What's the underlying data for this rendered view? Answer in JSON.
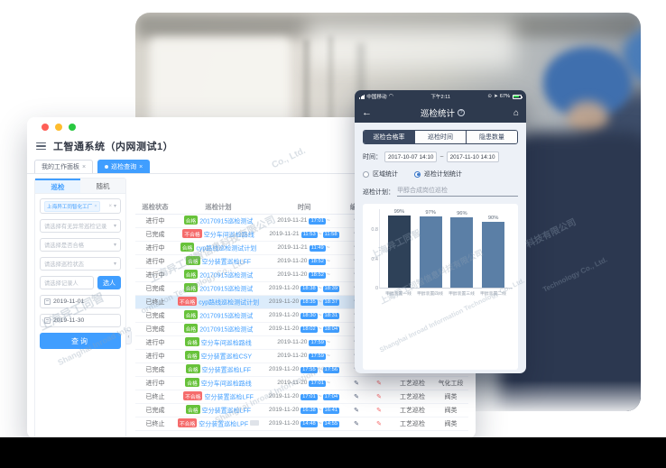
{
  "window": {
    "title": "工智通系统（内网测试1）",
    "tabs": [
      {
        "label": "我的工作面板",
        "active": false
      },
      {
        "label": "巡检查询",
        "active": true
      }
    ]
  },
  "sidebar": {
    "tabs": [
      {
        "label": "巡检"
      },
      {
        "label": "随机"
      }
    ],
    "org_tag": "上海异工同智化工厂",
    "org_tag_overflow": "+",
    "filters": [
      {
        "placeholder": "请选择有无异常巡检记录"
      },
      {
        "placeholder": "请选择是否合格"
      },
      {
        "placeholder": "请选择巡检状态"
      }
    ],
    "person_placeholder": "请选择记录人",
    "pick_person_label": "选人",
    "date_start": "2019-11-01",
    "date_end": "2019-11-30",
    "search_label": "查询"
  },
  "table": {
    "headers": [
      "巡检状态",
      "巡检计划",
      "时间",
      "编写",
      "",
      "",
      ""
    ],
    "rows": [
      {
        "status": "进行中",
        "result": "合格",
        "plan": "20170915巡检测试",
        "date": "2019-11-21",
        "t1": "17:01",
        "t2": "",
        "type": "",
        "area": "",
        "hl": false,
        "tag": false
      },
      {
        "status": "已完成",
        "result": "不合格",
        "plan": "空分车间巡检路线",
        "date": "2019-11-21",
        "t1": "11:53",
        "t2": "11:58",
        "type": "",
        "area": "",
        "hl": false,
        "tag": false
      },
      {
        "status": "进行中",
        "result": "合格",
        "plan": "cyp路线巡检测试计划",
        "date": "2019-11-21",
        "t1": "11:49",
        "t2": "",
        "type": "",
        "area": "",
        "hl": false,
        "tag": false
      },
      {
        "status": "进行中",
        "result": "合格",
        "plan": "空分装置巡检LFF",
        "date": "2019-11-20",
        "t1": "18:52",
        "t2": "",
        "type": "",
        "area": "",
        "hl": false,
        "tag": false
      },
      {
        "status": "进行中",
        "result": "合格",
        "plan": "20170915巡检测试",
        "date": "2019-11-20",
        "t1": "18:52",
        "t2": "",
        "type": "",
        "area": "",
        "hl": false,
        "tag": false
      },
      {
        "status": "已完成",
        "result": "合格",
        "plan": "20170915巡检测试",
        "date": "2019-11-20",
        "t1": "18:38",
        "t2": "18:39",
        "type": "",
        "area": "",
        "hl": false,
        "tag": false
      },
      {
        "status": "已终止",
        "result": "不合格",
        "plan": "cyp路线巡检测试计划",
        "date": "2019-11-20",
        "t1": "18:35",
        "t2": "18:37",
        "type": "",
        "area": "",
        "hl": true,
        "tag": false
      },
      {
        "status": "已完成",
        "result": "合格",
        "plan": "20170915巡检测试",
        "date": "2019-11-20",
        "t1": "18:30",
        "t2": "18:31",
        "type": "",
        "area": "",
        "hl": false,
        "tag": false
      },
      {
        "status": "已完成",
        "result": "合格",
        "plan": "20170915巡检测试",
        "date": "2019-11-20",
        "t1": "18:02",
        "t2": "18:04",
        "type": "",
        "area": "",
        "hl": false,
        "tag": false
      },
      {
        "status": "进行中",
        "result": "合格",
        "plan": "空分车间巡检路线",
        "date": "2019-11-20",
        "t1": "17:59",
        "t2": "",
        "type": "",
        "area": "",
        "hl": false,
        "tag": false
      },
      {
        "status": "进行中",
        "result": "合格",
        "plan": "空分装置巡检CSY",
        "date": "2019-11-20",
        "t1": "17:59",
        "t2": "",
        "type": "",
        "area": "",
        "hl": false,
        "tag": false
      },
      {
        "status": "已完成",
        "result": "合格",
        "plan": "空分装置巡检LFF",
        "date": "2019-11-20",
        "t1": "17:55",
        "t2": "17:56",
        "type": "工艺巡检",
        "area": "阀类",
        "hl": false,
        "tag": false
      },
      {
        "status": "进行中",
        "result": "合格",
        "plan": "空分车间巡检路线",
        "date": "2019-11-20",
        "t1": "17:01",
        "t2": "",
        "type": "工艺巡检",
        "area": "气化工段",
        "hl": false,
        "tag": false
      },
      {
        "status": "已终止",
        "result": "不合格",
        "plan": "空分装置巡检LFF",
        "date": "2019-11-20",
        "t1": "17:01",
        "t2": "17:04",
        "type": "工艺巡检",
        "area": "阀类",
        "hl": false,
        "tag": false
      },
      {
        "status": "已完成",
        "result": "合格",
        "plan": "空分装置巡检LFF",
        "date": "2019-11-20",
        "t1": "16:38",
        "t2": "16:41",
        "type": "工艺巡检",
        "area": "阀类",
        "hl": false,
        "tag": false
      },
      {
        "status": "已终止",
        "result": "不合格",
        "plan": "空分装置巡检LPF",
        "date": "2019-11-20",
        "t1": "14:48",
        "t2": "14:55",
        "type": "工艺巡检",
        "area": "阀类",
        "hl": false,
        "tag": true
      }
    ]
  },
  "phone": {
    "status": {
      "carrier": "中国移动",
      "time": "下午2:11",
      "battery": "67%"
    },
    "nav_title": "巡检统计",
    "segments": [
      {
        "label": "巡检合格率",
        "active": true
      },
      {
        "label": "巡检时间",
        "active": false
      },
      {
        "label": "隐患数量",
        "active": false
      }
    ],
    "time_label": "时间：",
    "time_from": "2017-10-07 14:10",
    "time_to": "2017-11-10 14:10",
    "radio_area": "区域统计",
    "radio_plan": "巡检计划统计",
    "plan_label": "巡检计划：",
    "plan_value": "甲醇合成岗位巡检"
  },
  "chart_data": {
    "type": "bar",
    "title": "巡检合格率",
    "categories": [
      "甲醇装置一线",
      "甲醇装置四线",
      "甲醇装置三线",
      "甲醇装置二线"
    ],
    "values": [
      0.99,
      0.97,
      0.96,
      0.9
    ],
    "value_labels": [
      "99%",
      "97%",
      "96%",
      "90%"
    ],
    "yticks": [
      0,
      0.4,
      0.8
    ],
    "ylim": [
      0,
      1
    ],
    "xlabel": "",
    "ylabel": "",
    "grid": false,
    "legend": "none",
    "bar_colors": [
      "#2e4158",
      "#5b7fa6",
      "#5b7fa6",
      "#5b7fa6"
    ]
  },
  "watermark": {
    "cn_short": "上海异工同智",
    "cn_company": "上海异工同智信息科技有限公司",
    "en_company": "Shanghai Inroad Information Technology Co., Ltd."
  },
  "colors": {
    "accent_blue": "#409eff",
    "ok_green": "#67c23a",
    "bad_red": "#f56c6c",
    "phone_dark": "#2e3a4e",
    "bar_dark": "#2e4158",
    "bar_blue": "#5b7fa6"
  }
}
